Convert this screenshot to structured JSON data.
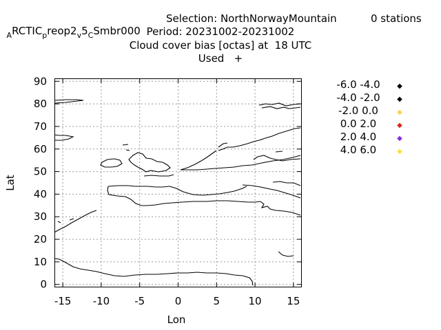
{
  "header": {
    "run_prefix_a": "A",
    "run_prefix_rest": "RCTIC",
    "run_p": "p",
    "run_reop": "reop2",
    "run_v": "v",
    "run_five": "5",
    "run_c": "C",
    "run_tail": "Smbr000",
    "selection": "Selection: NorthNorwayMountain",
    "stations": "0 stations",
    "period": "Period: 20231002-20231002",
    "subtitle": "Cloud cover bias [octas] at  18 UTC",
    "used": "Used   +"
  },
  "chart_data": {
    "type": "scatter",
    "title": "Cloud cover bias [octas] at  18 UTC",
    "xlabel": "Lon",
    "ylabel": "Lat",
    "xlim": [
      -16,
      16
    ],
    "ylim": [
      -1,
      91
    ],
    "xticks": [
      -15,
      -10,
      -5,
      0,
      5,
      10,
      15
    ],
    "yticks": [
      0,
      10,
      20,
      30,
      40,
      50,
      60,
      70,
      80,
      90
    ],
    "grid": true,
    "legend_position": "right",
    "series": [
      {
        "name": "-6.0 -4.0",
        "color": "#000000",
        "points": []
      },
      {
        "name": "-4.0 -2.0",
        "color": "#000000",
        "points": []
      },
      {
        "name": "-2.0 0.0",
        "color": "#ffd24a",
        "points": []
      },
      {
        "name": "0.0 2.0",
        "color": "#d42a1a",
        "points": []
      },
      {
        "name": "2.0 4.0",
        "color": "#8a2be2",
        "points": []
      },
      {
        "name": "4.0 6.0",
        "color": "#ffe135",
        "points": []
      }
    ]
  }
}
